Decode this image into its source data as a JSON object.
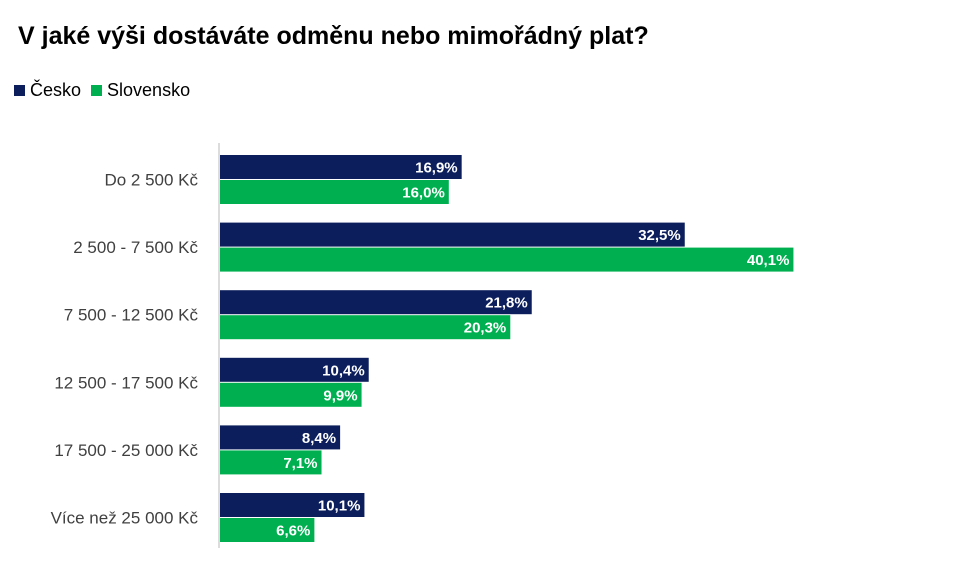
{
  "colors": {
    "cesko": "#0c1f5c",
    "slovensko": "#00b050",
    "axis": "#d0d0d0"
  },
  "chart_data": {
    "type": "bar",
    "orientation": "horizontal",
    "title": "V jaké výši dostáváte odměnu nebo mimořádný plat?",
    "categories": [
      "Do 2 500 Kč",
      "2 500 - 7 500 Kč",
      "7 500 - 12 500 Kč",
      "12 500 - 17 500 Kč",
      "17 500 - 25 000 Kč",
      "Více než 25 000 Kč"
    ],
    "series": [
      {
        "name": "Česko",
        "values": [
          16.9,
          32.5,
          21.8,
          10.4,
          8.4,
          10.1
        ],
        "labels": [
          "16,9%",
          "32,5%",
          "21,8%",
          "10,4%",
          "8,4%",
          "10,1%"
        ]
      },
      {
        "name": "Slovensko",
        "values": [
          16.0,
          40.1,
          20.3,
          9.9,
          7.1,
          6.6
        ],
        "labels": [
          "16,0%",
          "40,1%",
          "20,3%",
          "9,9%",
          "7,1%",
          "6,6%"
        ]
      }
    ],
    "unit": "%",
    "legend": "top-left",
    "grid": false
  }
}
